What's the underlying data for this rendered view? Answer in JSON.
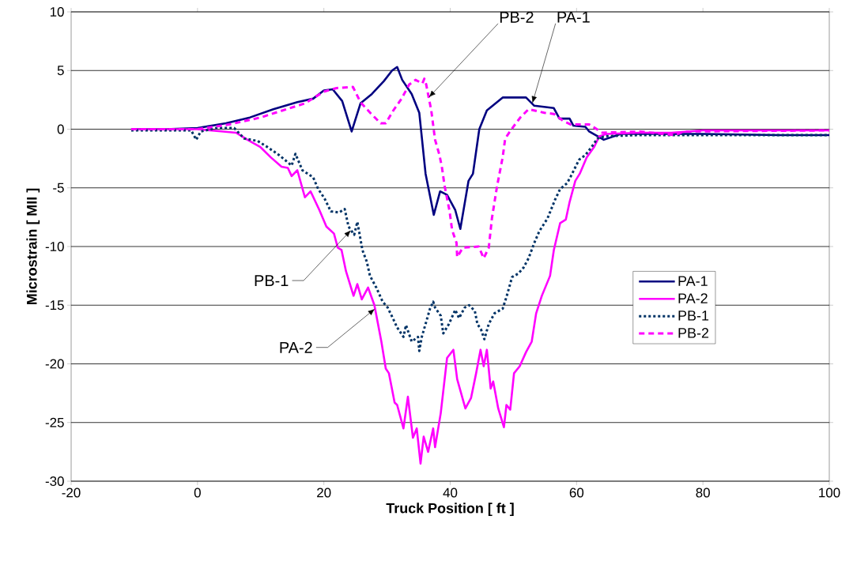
{
  "chart_data": {
    "type": "line",
    "xlabel": "Truck Position [ ft ]",
    "ylabel": "Microstrain [ MII ]",
    "xlim": [
      -20,
      100
    ],
    "xticks": [
      -20,
      0,
      20,
      40,
      60,
      80,
      100
    ],
    "ylim": [
      -30,
      10
    ],
    "yticks": [
      -30,
      -25,
      -20,
      -15,
      -10,
      -5,
      0,
      5,
      10
    ],
    "grid": "y",
    "legend": "right",
    "marker": "none",
    "annotations": [
      {
        "text": "PB-2",
        "x": 36.6,
        "y": 2.7
      },
      {
        "text": "PA-1",
        "x": 53,
        "y": 2.2
      },
      {
        "text": "PB-1",
        "x": 24.3,
        "y": -8.6
      },
      {
        "text": "PA-2",
        "x": 28.1,
        "y": -15.3
      }
    ],
    "series": [
      {
        "name": "PA-1",
        "color": "#000080",
        "line_style": "solid",
        "x": [
          -10.5,
          -5,
          0,
          4.5,
          8.3,
          12,
          15.8,
          18.3,
          20,
          21.4,
          22.9,
          24.4,
          25.8,
          27.6,
          29.5,
          30.8,
          31.6,
          32.4,
          33.9,
          35.1,
          36.1,
          37.4,
          38.4,
          39.5,
          40.8,
          41.6,
          42.9,
          43.6,
          44.6,
          45.8,
          48.3,
          52,
          53.3,
          56.4,
          57.3,
          58.9,
          59.5,
          61.4,
          62,
          64.3,
          67,
          80,
          92,
          100
        ],
        "values": [
          0,
          0,
          0.1,
          0.5,
          1.0,
          1.7,
          2.3,
          2.6,
          3.3,
          3.4,
          2.4,
          -0.2,
          2.2,
          3.0,
          4.1,
          5.0,
          5.3,
          4.2,
          3.0,
          1.4,
          -3.8,
          -7.3,
          -5.3,
          -5.6,
          -6.9,
          -8.5,
          -4.4,
          -3.8,
          0,
          1.6,
          2.7,
          2.7,
          2.0,
          1.8,
          0.9,
          0.9,
          0.3,
          0.2,
          -0.2,
          -0.9,
          -0.4,
          -0.4,
          -0.5,
          -0.5
        ]
      },
      {
        "name": "PA-2",
        "color": "#ff00ff",
        "line_style": "solid",
        "x": [
          -10.5,
          0,
          4.1,
          6.1,
          7.9,
          9.9,
          11.6,
          13.3,
          14.3,
          14.9,
          15.8,
          17,
          17.9,
          19.3,
          20.4,
          21.6,
          22.2,
          22.8,
          23.5,
          24.7,
          25.3,
          26,
          27,
          28,
          29.1,
          29.8,
          30.3,
          31.2,
          31.6,
          32.6,
          33.3,
          34.1,
          34.7,
          35.3,
          35.8,
          36.5,
          37.3,
          37.6,
          38.5,
          39.5,
          40.5,
          41.1,
          42.4,
          43.3,
          44.1,
          44.8,
          45.3,
          45.8,
          46.4,
          46.8,
          47.6,
          48.5,
          48.9,
          49.5,
          50.1,
          51,
          52,
          52.9,
          53.6,
          54.5,
          55.8,
          56.4,
          57.4,
          58.3,
          58.9,
          59.8,
          60.5,
          61.6,
          62.8,
          63.6,
          64.8,
          70,
          75,
          80,
          100
        ],
        "values": [
          0,
          0,
          -0.2,
          -0.3,
          -0.9,
          -1.5,
          -2.4,
          -3.2,
          -3.3,
          -4.0,
          -3.5,
          -5.8,
          -5.3,
          -6.9,
          -8.3,
          -8.9,
          -10.1,
          -10.3,
          -12.1,
          -14.2,
          -13.2,
          -14.5,
          -13.5,
          -15,
          -18.1,
          -20.4,
          -20.8,
          -23.3,
          -23.5,
          -25.5,
          -22.8,
          -26.3,
          -25.5,
          -28.5,
          -26.2,
          -27.5,
          -25.5,
          -27.1,
          -24.2,
          -19.5,
          -18.8,
          -21.3,
          -23.8,
          -22.9,
          -20.8,
          -18.8,
          -20.2,
          -18.8,
          -22.1,
          -21.5,
          -23.8,
          -25.4,
          -23.5,
          -23.9,
          -20.8,
          -20.2,
          -19,
          -18.1,
          -15.7,
          -14.2,
          -12.5,
          -10.3,
          -8.0,
          -7.7,
          -6.2,
          -4.4,
          -3.8,
          -2.4,
          -1.5,
          -0.6,
          -0.4,
          -0.3,
          -0.3,
          -0.1,
          -0.1
        ]
      },
      {
        "name": "PB-1",
        "color": "#003366",
        "line_style": "dotted",
        "x": [
          -10.5,
          -1,
          -0.2,
          0.5,
          3,
          5.8,
          7.4,
          9.5,
          11,
          12.9,
          14.9,
          15.5,
          16.6,
          18.3,
          19.1,
          20.1,
          21.1,
          22.4,
          23.3,
          23.9,
          24.8,
          25.3,
          26.1,
          26.8,
          27.3,
          28.3,
          29.3,
          30.1,
          31,
          31.6,
          32.6,
          33,
          33.9,
          34.9,
          35.1,
          35.5,
          36.1,
          36.8,
          37.3,
          37.6,
          38.5,
          38.9,
          39.8,
          40.8,
          41.4,
          42.3,
          43,
          43.9,
          44.3,
          44.9,
          45.4,
          46.1,
          47,
          48.3,
          48.9,
          49.8,
          50.8,
          51.6,
          52.4,
          53.3,
          54.1,
          55.4,
          56.6,
          57.4,
          58.5,
          59.1,
          60.4,
          61.4,
          62.4,
          63.3,
          64.5,
          70,
          85,
          100
        ],
        "values": [
          -0.1,
          -0.1,
          -0.9,
          -0.2,
          0.1,
          0.1,
          -0.8,
          -1.0,
          -1.5,
          -2.2,
          -3.1,
          -2.1,
          -3.5,
          -4.1,
          -5.1,
          -5.9,
          -7.0,
          -7.1,
          -6.8,
          -8.3,
          -9.0,
          -7.9,
          -10.3,
          -11.3,
          -12.5,
          -13.5,
          -14.7,
          -15.2,
          -16.2,
          -16.9,
          -17.7,
          -16.7,
          -18.1,
          -17.7,
          -18.9,
          -17.7,
          -16.6,
          -15.3,
          -14.7,
          -15.2,
          -15.9,
          -17.4,
          -16.6,
          -15.4,
          -16.1,
          -15.2,
          -15.0,
          -15.5,
          -16.6,
          -17.1,
          -17.9,
          -16.6,
          -15.7,
          -15.3,
          -14.3,
          -12.6,
          -12.3,
          -11.8,
          -11.0,
          -9.7,
          -8.7,
          -7.6,
          -6.0,
          -5.1,
          -4.6,
          -4.0,
          -2.6,
          -2.2,
          -1.5,
          -0.8,
          -0.6,
          -0.5,
          -0.5,
          -0.5
        ]
      },
      {
        "name": "PB-2",
        "color": "#ff00ff",
        "line_style": "dashed",
        "x": [
          -10.5,
          0,
          5,
          10,
          17,
          20,
          22,
          24.6,
          25.8,
          27.5,
          29,
          29.8,
          31,
          32.3,
          33.5,
          34.5,
          35.6,
          35.9,
          36.2,
          37,
          37.6,
          38.3,
          38.7,
          39.1,
          39.9,
          40.3,
          41,
          41.1,
          42,
          44.5,
          45.3,
          46.1,
          46.6,
          47.4,
          48.3,
          48.7,
          49.7,
          51.1,
          52.4,
          54.9,
          56.4,
          57.9,
          59.1,
          62,
          64.1,
          70,
          75.5,
          77,
          100
        ],
        "values": [
          0,
          0,
          0.4,
          1.0,
          2.2,
          3.2,
          3.5,
          3.6,
          2.3,
          1.3,
          0.5,
          0.5,
          1.6,
          2.6,
          3.8,
          4.2,
          3.9,
          4.3,
          3.8,
          1.6,
          -0.9,
          -2.2,
          -3.3,
          -4.8,
          -7.0,
          -8.6,
          -9.7,
          -10.9,
          -10.1,
          -10,
          -11,
          -10.1,
          -7.6,
          -4.9,
          -2.4,
          -0.8,
          0,
          1.0,
          1.7,
          1.4,
          1.3,
          0.7,
          0.4,
          0.4,
          -0.3,
          -0.2,
          -0.5,
          -0.2,
          -0.1
        ]
      }
    ]
  }
}
